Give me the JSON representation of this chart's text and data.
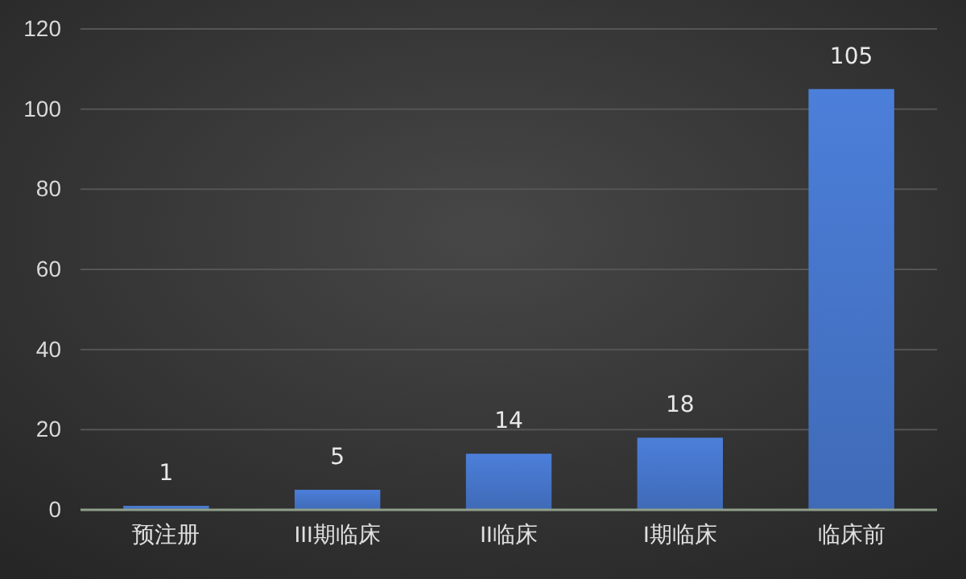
{
  "chart_data": {
    "type": "bar",
    "categories": [
      "预注册",
      "III期临床",
      "II临床",
      "I期临床",
      "临床前"
    ],
    "values": [
      1,
      5,
      14,
      18,
      105
    ],
    "color": "#4472c4",
    "ylim": [
      0,
      120
    ],
    "yticks": [
      0,
      20,
      40,
      60,
      80,
      100,
      120
    ],
    "grid": "y",
    "data_labels": true
  }
}
